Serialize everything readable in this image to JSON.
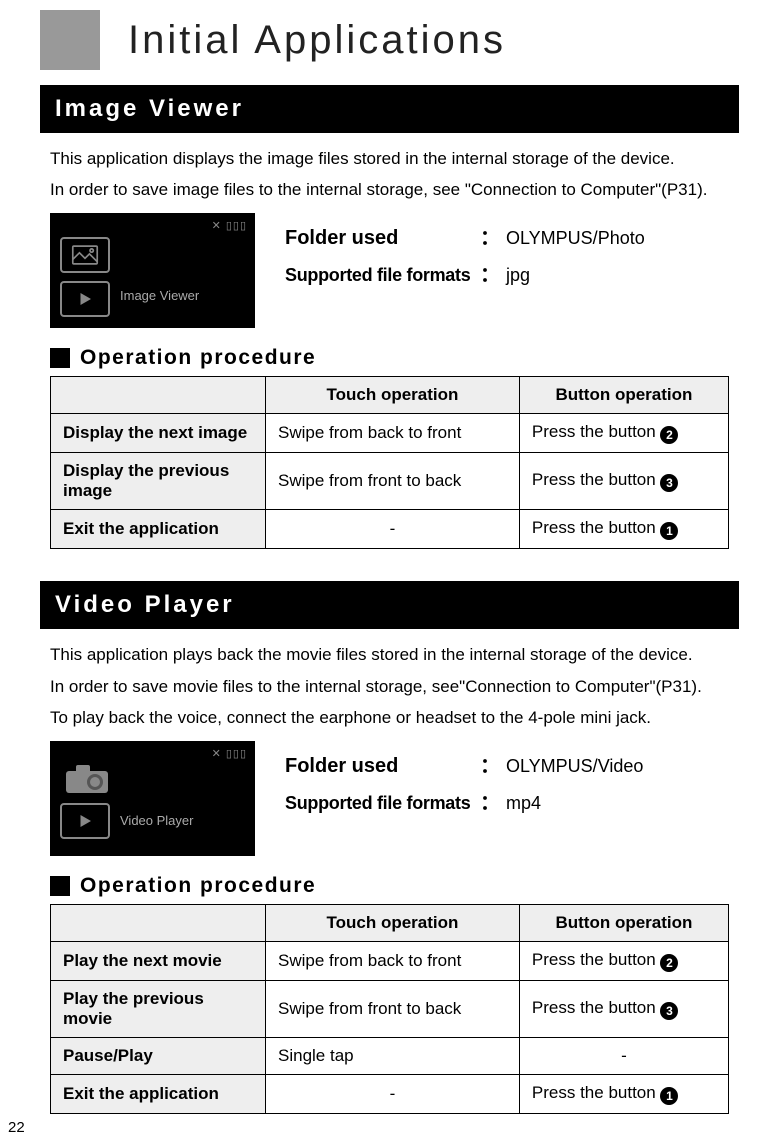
{
  "page_number": "22",
  "page_title": "Initial Applications",
  "image_viewer": {
    "section_title": "Image Viewer",
    "description1": "This application displays the image files stored in the internal storage of the device.",
    "description2": "In order to save image files to the internal storage, see \"Connection to Computer\"(P31).",
    "thumb_label": "Image Viewer",
    "folder_label": "Folder used",
    "folder_value": "OLYMPUS/Photo",
    "formats_label": "Supported file formats",
    "formats_value": "jpg",
    "operation_heading": "Operation procedure",
    "table": {
      "headers": [
        "",
        "Touch operation",
        "Button operation"
      ],
      "rows": [
        {
          "label": "Display the next image",
          "touch": "Swipe from back to front",
          "button_text": "Press the button ",
          "button_num": "2",
          "touch_center": false
        },
        {
          "label": "Display the previous image",
          "touch": "Swipe from front to back",
          "button_text": "Press the button ",
          "button_num": "3",
          "touch_center": false
        },
        {
          "label": "Exit the application",
          "touch": "-",
          "button_text": "Press the button ",
          "button_num": "1",
          "touch_center": true
        }
      ]
    }
  },
  "video_player": {
    "section_title": "Video Player",
    "description1": "This application plays back the movie files stored in the internal storage of the device.",
    "description2": "In order to save movie files to the internal storage, see\"Connection to Computer\"(P31).",
    "description3": "To play back the voice, connect the earphone or headset to the 4-pole mini jack.",
    "thumb_label": "Video Player",
    "folder_label": "Folder used",
    "folder_value": "OLYMPUS/Video",
    "formats_label": "Supported file formats",
    "formats_value": "mp4",
    "operation_heading": "Operation procedure",
    "table": {
      "headers": [
        "",
        "Touch operation",
        "Button operation"
      ],
      "rows": [
        {
          "label": "Play the next movie",
          "touch": "Swipe from back to front",
          "button_text": "Press the button ",
          "button_num": "2",
          "touch_center": false
        },
        {
          "label": "Play the previous movie",
          "touch": "Swipe from front to back",
          "button_text": "Press the button ",
          "button_num": "3",
          "touch_center": false
        },
        {
          "label": "Pause/Play",
          "touch": "Single tap",
          "button_text": "-",
          "button_num": "",
          "touch_center": false,
          "button_center": true
        },
        {
          "label": "Exit the application",
          "touch": "-",
          "button_text": "Press the button ",
          "button_num": "1",
          "touch_center": true
        }
      ]
    }
  },
  "colors": {
    "section_bg": "#000000",
    "section_fg": "#ffffff",
    "title_square": "#999999",
    "table_header_bg": "#eeeeee"
  }
}
